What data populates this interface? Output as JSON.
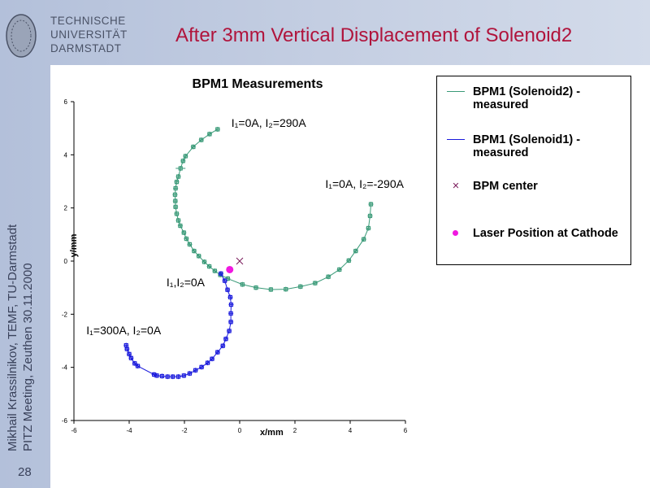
{
  "header": {
    "university": [
      "TECHNISCHE",
      "UNIVERSITÄT",
      "DARMSTADT"
    ],
    "title": "After 3mm Vertical Displacement of Solenoid2"
  },
  "sidebar": {
    "author_line": "Mikhail Krassilnikov, TEMF, TU-Darmstadt",
    "meeting_line": "PITZ Meeting, Zeuthen 30.11.2000",
    "page_number": "28"
  },
  "colors": {
    "solenoid2": "#3a9a78",
    "solenoid1": "#1a1adc",
    "bpm_center": "#7a1a5a",
    "laser": "#f018e0",
    "title": "#b0143c"
  },
  "chart_data": {
    "type": "scatter",
    "title": "BPM1 Measurements",
    "xlabel": "x/mm",
    "ylabel": "y/mm",
    "xlim": [
      -6,
      6
    ],
    "ylim": [
      -6,
      6
    ],
    "xticks": [
      "-6",
      "-4",
      "-2",
      "0",
      "2",
      "4",
      "6"
    ],
    "yticks": [
      "6",
      "4",
      "2",
      "0",
      "-2",
      "-4",
      "-6"
    ],
    "legend_position": "right",
    "series": [
      {
        "name": "BPM1 (Solenoid2) - measured",
        "color": "#3a9a78",
        "points": [
          [
            -0.8,
            4.96
          ],
          [
            -1.09,
            4.78
          ],
          [
            -1.39,
            4.56
          ],
          [
            -1.68,
            4.3
          ],
          [
            -1.96,
            3.95
          ],
          [
            -2.05,
            3.77
          ],
          [
            -2.14,
            3.49
          ],
          [
            -2.22,
            3.18
          ],
          [
            -2.28,
            2.98
          ],
          [
            -2.32,
            2.74
          ],
          [
            -2.34,
            2.5
          ],
          [
            -2.33,
            2.26
          ],
          [
            -2.32,
            2.04
          ],
          [
            -2.28,
            1.78
          ],
          [
            -2.22,
            1.53
          ],
          [
            -2.15,
            1.33
          ],
          [
            -2.02,
            1.07
          ],
          [
            -1.93,
            0.84
          ],
          [
            -1.81,
            0.63
          ],
          [
            -1.65,
            0.38
          ],
          [
            -1.48,
            0.19
          ],
          [
            -1.28,
            -0.03
          ],
          [
            -1.1,
            -0.2
          ],
          [
            -0.9,
            -0.37
          ],
          [
            -0.7,
            -0.52
          ],
          [
            -0.43,
            -0.66
          ],
          [
            0.1,
            -0.88
          ],
          [
            0.59,
            -1.0
          ],
          [
            1.13,
            -1.07
          ],
          [
            1.67,
            -1.06
          ],
          [
            2.2,
            -0.96
          ],
          [
            2.73,
            -0.83
          ],
          [
            3.21,
            -0.59
          ],
          [
            3.61,
            -0.32
          ],
          [
            3.95,
            0.02
          ],
          [
            4.2,
            0.38
          ],
          [
            4.49,
            0.82
          ],
          [
            4.66,
            1.24
          ],
          [
            4.72,
            1.7
          ],
          [
            4.75,
            2.14
          ]
        ]
      },
      {
        "name": "BPM1 (Solenoid1) - measured",
        "color": "#1a1adc",
        "points": [
          [
            -0.68,
            -0.47
          ],
          [
            -0.54,
            -0.74
          ],
          [
            -0.44,
            -1.08
          ],
          [
            -0.34,
            -1.36
          ],
          [
            -0.31,
            -1.64
          ],
          [
            -0.32,
            -1.97
          ],
          [
            -0.32,
            -2.29
          ],
          [
            -0.38,
            -2.63
          ],
          [
            -0.5,
            -2.93
          ],
          [
            -0.61,
            -3.19
          ],
          [
            -0.8,
            -3.43
          ],
          [
            -1.0,
            -3.68
          ],
          [
            -1.16,
            -3.83
          ],
          [
            -1.38,
            -3.99
          ],
          [
            -1.6,
            -4.11
          ],
          [
            -1.81,
            -4.23
          ],
          [
            -2.02,
            -4.31
          ],
          [
            -2.22,
            -4.35
          ],
          [
            -2.42,
            -4.35
          ],
          [
            -2.61,
            -4.35
          ],
          [
            -2.81,
            -4.33
          ],
          [
            -3.0,
            -4.31
          ],
          [
            -3.1,
            -4.27
          ],
          [
            -3.69,
            -3.95
          ],
          [
            -3.8,
            -3.85
          ],
          [
            -3.93,
            -3.65
          ],
          [
            -4.0,
            -3.5
          ],
          [
            -4.08,
            -3.31
          ],
          [
            -4.11,
            -3.17
          ]
        ]
      },
      {
        "name": "BPM center",
        "color": "#7a1a5a",
        "points": [
          [
            0,
            0
          ]
        ]
      },
      {
        "name": "Laser Position at Cathode",
        "color": "#f018e0",
        "points": [
          [
            -0.36,
            -0.32
          ]
        ]
      }
    ],
    "annotations": [
      {
        "text": "I₁=0A, I₂=290A",
        "x": -0.3,
        "y": 5.05
      },
      {
        "text": "I₁=0A, I₂=-290A",
        "x": 3.1,
        "y": 2.75
      },
      {
        "text": "I₁,I₂=0A",
        "x": -2.65,
        "y": -0.95
      },
      {
        "text": "I₁=300A, I₂=0A",
        "x": -5.55,
        "y": -2.75
      }
    ]
  }
}
